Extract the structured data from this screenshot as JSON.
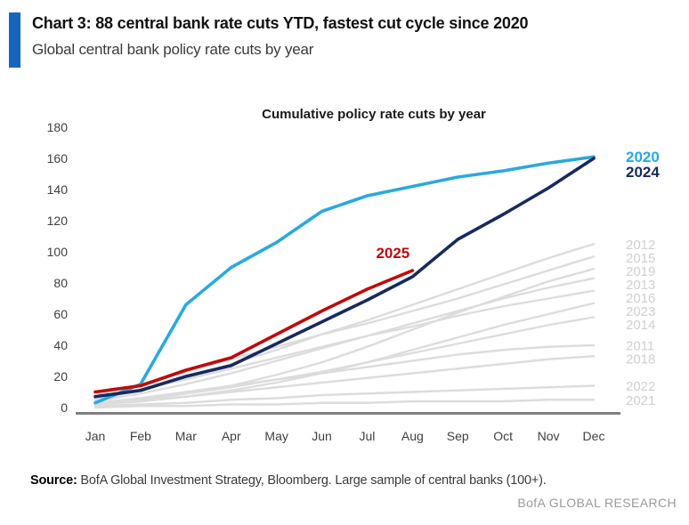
{
  "header": {
    "title": "Chart 3: 88 central bank rate cuts YTD, fastest cut cycle since 2020",
    "subtitle": "Global central bank policy rate cuts by year",
    "accent_color": "#1565C0"
  },
  "chart_data": {
    "type": "line",
    "title": "Cumulative policy rate cuts by year",
    "x_labels": [
      "Jan",
      "Feb",
      "Mar",
      "Apr",
      "May",
      "Jun",
      "Jul",
      "Aug",
      "Sep",
      "Oct",
      "Nov",
      "Dec"
    ],
    "ylabel": "",
    "xlabel": "",
    "ylim": [
      0,
      180
    ],
    "y_ticks": [
      0,
      20,
      40,
      60,
      80,
      100,
      120,
      140,
      160,
      180
    ],
    "grid": false,
    "legend_position": "line-end-labels-right",
    "colors": {
      "highlight_2020": "#2AA9DC",
      "highlight_2024": "#172A5E",
      "highlight_2025": "#C00A0A",
      "muted_line": "#DCDCDC",
      "muted_label": "#CFCFCF",
      "axis": "#7F7F7F",
      "tick_text": "#3F3F3F"
    },
    "series": [
      {
        "name": "2012",
        "color": "#DCDCDC",
        "label_color": "#CFCFCF",
        "emphasis": false,
        "label_placement": "right",
        "values": [
          5,
          11,
          19,
          28,
          37,
          47,
          56,
          66,
          76,
          86,
          96,
          105
        ]
      },
      {
        "name": "2015",
        "color": "#DCDCDC",
        "label_color": "#CFCFCF",
        "emphasis": false,
        "label_placement": "right",
        "values": [
          8,
          15,
          23,
          31,
          39,
          47,
          54,
          62,
          70,
          79,
          88,
          97
        ]
      },
      {
        "name": "2019",
        "color": "#DCDCDC",
        "label_color": "#CFCFCF",
        "emphasis": false,
        "label_placement": "right",
        "values": [
          2,
          5,
          9,
          14,
          21,
          29,
          39,
          50,
          61,
          71,
          81,
          89
        ]
      },
      {
        "name": "2013",
        "color": "#DCDCDC",
        "label_color": "#CFCFCF",
        "emphasis": false,
        "label_placement": "right",
        "values": [
          4,
          9,
          15,
          22,
          30,
          38,
          46,
          54,
          62,
          70,
          77,
          83
        ]
      },
      {
        "name": "2016",
        "color": "#DCDCDC",
        "label_color": "#CFCFCF",
        "emphasis": false,
        "label_placement": "right",
        "values": [
          6,
          12,
          18,
          25,
          32,
          39,
          46,
          52,
          59,
          65,
          70,
          75
        ]
      },
      {
        "name": "2023",
        "color": "#DCDCDC",
        "label_color": "#CFCFCF",
        "emphasis": false,
        "label_placement": "right",
        "values": [
          2,
          4,
          7,
          11,
          16,
          22,
          29,
          37,
          45,
          53,
          60,
          67
        ]
      },
      {
        "name": "2014",
        "color": "#DCDCDC",
        "label_color": "#CFCFCF",
        "emphasis": false,
        "label_placement": "right",
        "values": [
          2,
          5,
          9,
          13,
          18,
          23,
          29,
          35,
          41,
          47,
          53,
          58
        ]
      },
      {
        "name": "2011",
        "color": "#DCDCDC",
        "label_color": "#CFCFCF",
        "emphasis": false,
        "label_placement": "right",
        "values": [
          3,
          6,
          10,
          14,
          18,
          22,
          26,
          30,
          34,
          37,
          39,
          40
        ]
      },
      {
        "name": "2018",
        "color": "#DCDCDC",
        "label_color": "#CFCFCF",
        "emphasis": false,
        "label_placement": "right",
        "values": [
          2,
          4,
          7,
          10,
          13,
          16,
          19,
          22,
          25,
          28,
          31,
          33
        ]
      },
      {
        "name": "2022",
        "color": "#DCDCDC",
        "label_color": "#CFCFCF",
        "emphasis": false,
        "label_placement": "right",
        "values": [
          1,
          2,
          3,
          5,
          6,
          8,
          9,
          10,
          11,
          12,
          13,
          14
        ]
      },
      {
        "name": "2021",
        "color": "#DCDCDC",
        "label_color": "#CFCFCF",
        "emphasis": false,
        "label_placement": "right",
        "values": [
          0,
          1,
          1,
          2,
          2,
          3,
          3,
          4,
          4,
          4,
          5,
          5
        ]
      },
      {
        "name": "2020",
        "color": "#2AA9DC",
        "label_color": "#2AA9DC",
        "emphasis": true,
        "label_placement": "right",
        "values": [
          3,
          15,
          66,
          90,
          106,
          126,
          136,
          142,
          148,
          152,
          157,
          161
        ]
      },
      {
        "name": "2024",
        "color": "#172A5E",
        "label_color": "#172A5E",
        "emphasis": true,
        "label_placement": "right",
        "values": [
          7,
          11,
          20,
          27,
          41,
          55,
          69,
          84,
          108,
          124,
          141,
          160
        ]
      },
      {
        "name": "2025",
        "color": "#C00A0A",
        "label_color": "#C00A0A",
        "emphasis": true,
        "label_placement": "above_end",
        "values": [
          10,
          14,
          24,
          32,
          47,
          62,
          76,
          88
        ]
      }
    ]
  },
  "footer": {
    "source_label": "Source:",
    "source_text": " BofA Global Investment Strategy, Bloomberg. Large sample of central banks (100+).",
    "brand": "BofA GLOBAL RESEARCH"
  }
}
